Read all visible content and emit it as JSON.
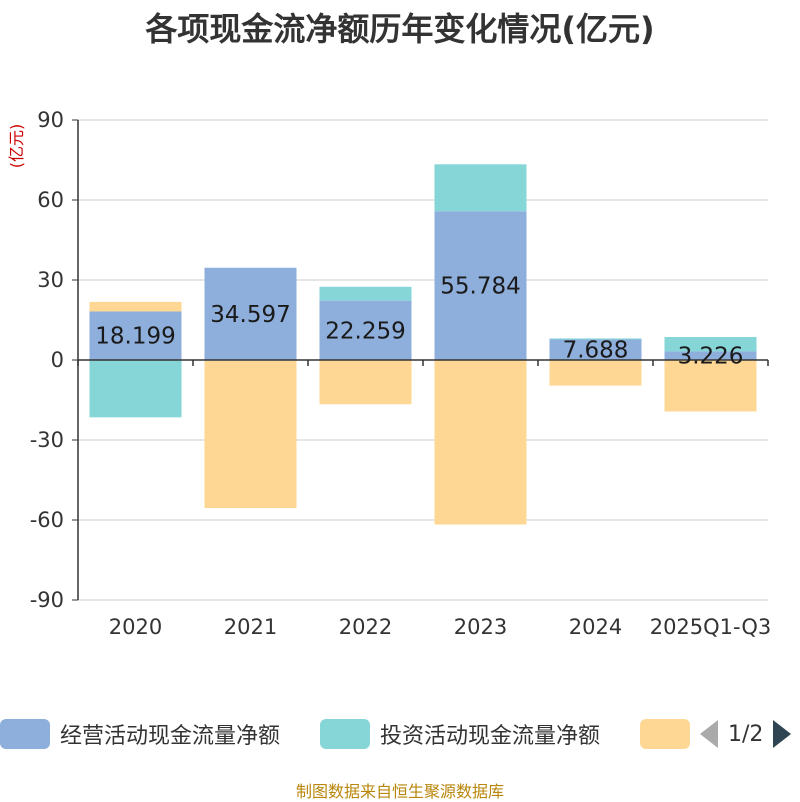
{
  "chart_data": {
    "type": "bar",
    "stacked": true,
    "title": "各项现金流净额历年变化情况(亿元)",
    "ylabel": "(亿元)",
    "xlabel": "",
    "ylim": [
      -90,
      90
    ],
    "yticks": [
      90,
      60,
      30,
      0,
      -30,
      -60,
      -90
    ],
    "categories": [
      "2020",
      "2021",
      "2022",
      "2023",
      "2024",
      "2025Q1-Q3"
    ],
    "series": [
      {
        "name": "经营活动现金流量净额",
        "color": "#8eaedb",
        "values": [
          18.199,
          34.597,
          22.259,
          55.784,
          7.688,
          3.226
        ],
        "labels": [
          "18.199",
          "34.597",
          "22.259",
          "55.784",
          "7.688",
          "3.226"
        ]
      },
      {
        "name": "投资活动现金流量净额",
        "color": "#86d5d7",
        "values": [
          -21.5,
          -0.3,
          5.2,
          17.6,
          0.4,
          5.4
        ]
      },
      {
        "name": "",
        "color": "#fdd793",
        "values": [
          3.6,
          -55.2,
          -16.6,
          -61.7,
          -9.6,
          -19.3
        ]
      }
    ],
    "legend_position": "bottom",
    "grid": true
  },
  "legend": {
    "page": "1/2"
  },
  "source_note": "制图数据来自恒生聚源数据库"
}
